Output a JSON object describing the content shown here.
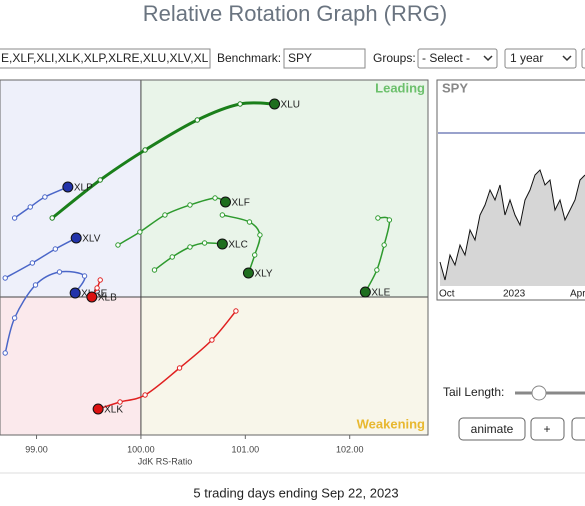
{
  "header": {
    "title": "Relative Rotation Graph (RRG)"
  },
  "controls": {
    "symbols": "E,XLF,XLI,XLK,XLP,XLRE,XLU,XLV,XL",
    "benchmark_label": "Benchmark:",
    "benchmark": "SPY",
    "groups_label": "Groups:",
    "groups": "- Select -",
    "period": "1 year"
  },
  "chart_data": {
    "type": "rrg",
    "x_label": "JdK RS-Ratio",
    "xlim": [
      98.65,
      102.75
    ],
    "ylim": [
      98.62,
      102.17
    ],
    "xticks": [
      {
        "value": 99,
        "label": "99.00"
      },
      {
        "value": 100,
        "label": "100.00"
      },
      {
        "value": 101,
        "label": "101.00"
      },
      {
        "value": 102,
        "label": "102.00"
      }
    ],
    "quadrant_labels": {
      "leading": "Leading",
      "weakening": "Weakening"
    },
    "series": [
      {
        "name": "XLU",
        "color": "#1a7f1a",
        "head_color": "#1f6e1f",
        "x": [
          99.15,
          99.61,
          100.04,
          100.54,
          100.95,
          101.28
        ],
        "y": [
          100.79,
          101.17,
          101.47,
          101.77,
          101.93,
          101.93
        ]
      },
      {
        "name": "XLF",
        "color": "#2e9a2e",
        "head_color": "#1f6e1f",
        "x": [
          99.78,
          99.99,
          100.23,
          100.47,
          100.71,
          100.81
        ],
        "y": [
          100.52,
          100.65,
          100.82,
          100.92,
          100.99,
          100.95
        ]
      },
      {
        "name": "XLC",
        "color": "#2e9a2e",
        "head_color": "#1f6e1f",
        "x": [
          100.13,
          100.3,
          100.47,
          100.61,
          100.78
        ],
        "y": [
          100.27,
          100.4,
          100.5,
          100.54,
          100.53
        ]
      },
      {
        "name": "XLY",
        "color": "#2e9a2e",
        "head_color": "#1f6e1f",
        "x": [
          100.78,
          101.04,
          101.14,
          101.09,
          101.03
        ],
        "y": [
          100.82,
          100.75,
          100.62,
          100.42,
          100.24
        ]
      },
      {
        "name": "XLE",
        "color": "#2e9a2e",
        "head_color": "#1f6e1f",
        "x": [
          102.27,
          102.38,
          102.33,
          102.26,
          102.15
        ],
        "y": [
          100.79,
          100.77,
          100.52,
          100.27,
          100.05
        ]
      },
      {
        "name": "XLP",
        "color": "#4a66c8",
        "head_color": "#2233aa",
        "x": [
          98.79,
          98.94,
          99.08,
          99.3
        ],
        "y": [
          100.79,
          100.9,
          101.0,
          101.1
        ]
      },
      {
        "name": "XLV",
        "color": "#4a66c8",
        "head_color": "#2233aa",
        "x": [
          98.7,
          98.96,
          99.18,
          99.38
        ],
        "y": [
          100.19,
          100.34,
          100.48,
          100.59
        ]
      },
      {
        "name": "XLRE",
        "color": "#4a66c8",
        "head_color": "#2233aa",
        "x": [
          98.7,
          98.79,
          98.99,
          99.22,
          99.46,
          99.37
        ],
        "y": [
          99.44,
          99.79,
          100.12,
          100.25,
          100.21,
          100.04
        ]
      },
      {
        "name": "XLB",
        "color": "#e02020",
        "head_color": "#dd1111",
        "x": [
          99.61,
          99.58,
          99.53
        ],
        "y": [
          100.17,
          100.09,
          100.0
        ]
      },
      {
        "name": "XLK",
        "color": "#e02020",
        "head_color": "#dd1111",
        "x": [
          100.91,
          100.68,
          100.37,
          100.04,
          99.8,
          99.59
        ],
        "y": [
          99.86,
          99.57,
          99.29,
          99.02,
          98.95,
          98.88
        ]
      }
    ]
  },
  "side_chart": {
    "symbol": "SPY",
    "x_labels": [
      "Oct",
      "2023",
      "Apr"
    ]
  },
  "tail": {
    "label": "Tail Length:"
  },
  "buttons": [
    "animate",
    "+"
  ],
  "footer": "5 trading days ending Sep 22, 2023"
}
